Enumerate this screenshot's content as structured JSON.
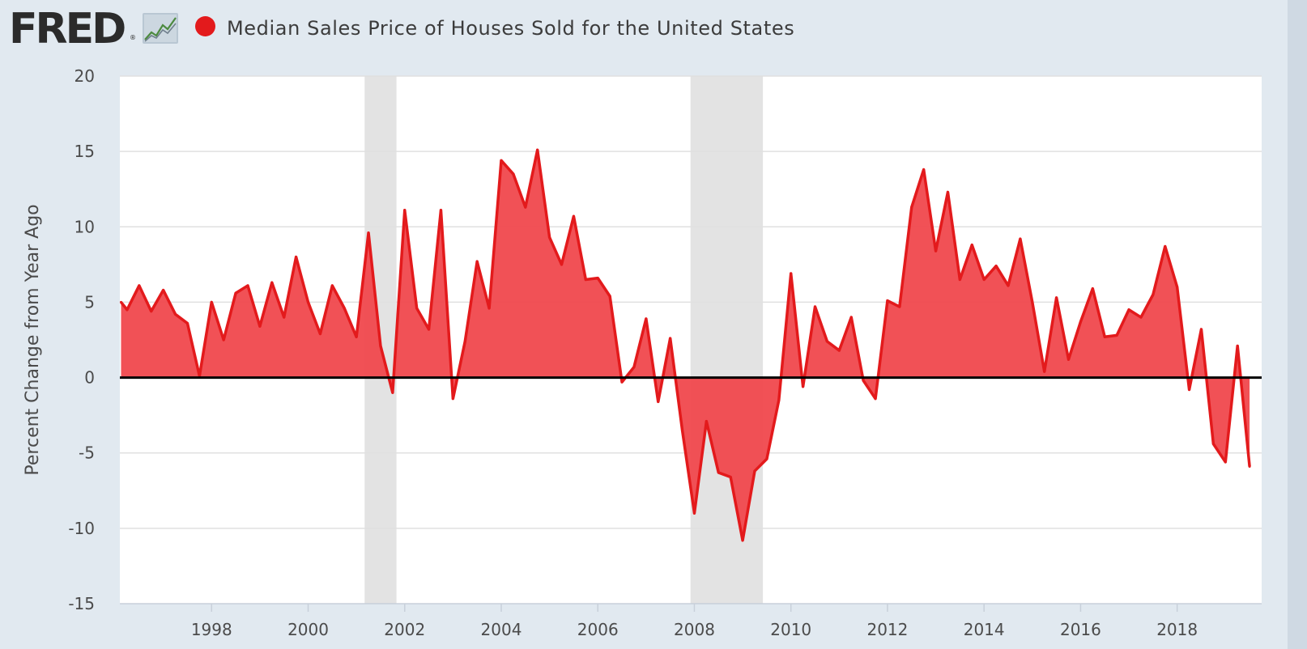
{
  "header": {
    "logo_text": "FRED",
    "logo_reg": "®",
    "title": "Median Sales Price of Houses Sold for the United States"
  },
  "colors": {
    "series": "#e31a1c",
    "fill": "#f0484d",
    "recession": "#e3e3e3",
    "background": "#e1e9f0",
    "plot": "#ffffff"
  },
  "chart_data": {
    "type": "area",
    "title": "Median Sales Price of Houses Sold for the United States",
    "xlabel": "",
    "ylabel": "Percent Change from Year Ago",
    "xlim": [
      1996.1,
      2019.75
    ],
    "ylim": [
      -15,
      20
    ],
    "yticks": [
      -15,
      -10,
      -5,
      0,
      5,
      10,
      15,
      20
    ],
    "xticks": [
      1998,
      2000,
      2002,
      2004,
      2006,
      2008,
      2010,
      2012,
      2014,
      2016,
      2018
    ],
    "grid": true,
    "recessions": [
      [
        2001.17,
        2001.83
      ],
      [
        2007.92,
        2009.42
      ]
    ],
    "series": [
      {
        "name": "Median Sales Price of Houses Sold for the United States",
        "x": [
          1996.125,
          1996.25,
          1996.5,
          1996.75,
          1997,
          1997.25,
          1997.5,
          1997.75,
          1998,
          1998.25,
          1998.5,
          1998.75,
          1999,
          1999.25,
          1999.5,
          1999.75,
          2000,
          2000.25,
          2000.5,
          2000.75,
          2001,
          2001.25,
          2001.5,
          2001.75,
          2002,
          2002.25,
          2002.5,
          2002.75,
          2003,
          2003.25,
          2003.5,
          2003.75,
          2004,
          2004.25,
          2004.5,
          2004.75,
          2005,
          2005.25,
          2005.5,
          2005.75,
          2006,
          2006.25,
          2006.5,
          2006.75,
          2007,
          2007.25,
          2007.5,
          2007.75,
          2008,
          2008.25,
          2008.5,
          2008.75,
          2009,
          2009.25,
          2009.5,
          2009.75,
          2010,
          2010.25,
          2010.5,
          2010.75,
          2011,
          2011.25,
          2011.5,
          2011.75,
          2012,
          2012.25,
          2012.5,
          2012.75,
          2013,
          2013.25,
          2013.5,
          2013.75,
          2014,
          2014.25,
          2014.5,
          2014.75,
          2015,
          2015.25,
          2015.5,
          2015.75,
          2016,
          2016.25,
          2016.5,
          2016.75,
          2017,
          2017.25,
          2017.5,
          2017.75,
          2018,
          2018.25,
          2018.5,
          2018.75,
          2019,
          2019.25,
          2019.5
        ],
        "values": [
          5.0,
          4.5,
          6.1,
          4.4,
          5.8,
          4.2,
          3.6,
          0.1,
          5.0,
          2.5,
          5.6,
          6.1,
          3.4,
          6.3,
          4.0,
          8.0,
          5.0,
          2.9,
          6.1,
          4.6,
          2.7,
          9.6,
          2.1,
          -1.0,
          11.1,
          4.6,
          3.2,
          11.1,
          -1.4,
          2.4,
          7.7,
          4.6,
          14.4,
          13.5,
          11.3,
          15.1,
          9.3,
          7.5,
          10.7,
          6.5,
          6.6,
          5.4,
          -0.3,
          0.7,
          3.9,
          -1.6,
          2.6,
          -3.5,
          -9.0,
          -2.9,
          -6.3,
          -6.6,
          -10.8,
          -6.2,
          -5.4,
          -1.5,
          6.9,
          -0.6,
          4.7,
          2.4,
          1.8,
          4.0,
          -0.2,
          -1.4,
          5.1,
          4.7,
          11.3,
          13.8,
          8.4,
          12.3,
          6.5,
          8.8,
          6.5,
          7.4,
          6.1,
          9.2,
          5.0,
          0.4,
          5.3,
          1.2,
          3.7,
          5.9,
          2.7,
          2.8,
          4.5,
          4.0,
          5.5,
          8.7,
          6.0,
          -0.8,
          3.2,
          -4.4,
          -5.6,
          2.1,
          -5.9
        ]
      }
    ]
  }
}
